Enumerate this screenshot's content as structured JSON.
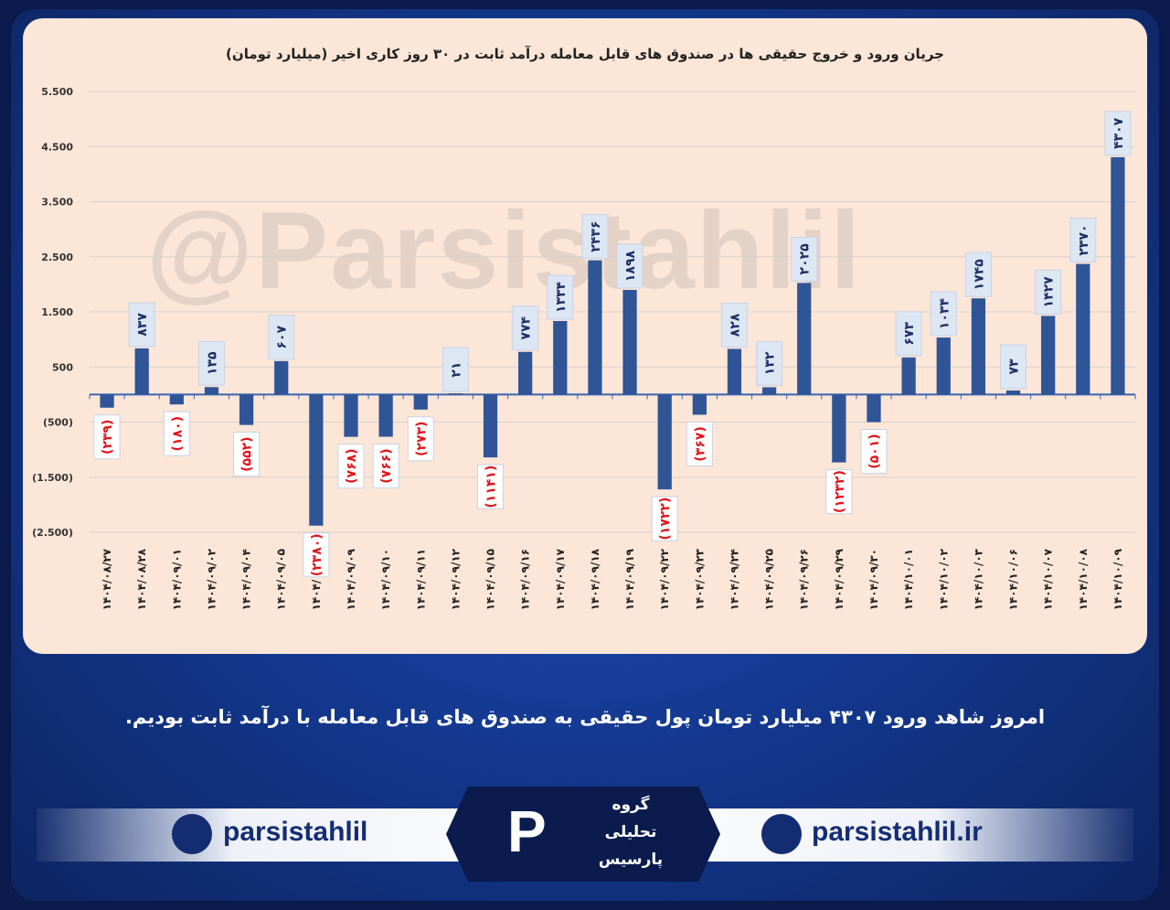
{
  "chart_data": {
    "type": "bar",
    "title": "جریان ورود و خروج حقیقی ها در صندوق های قابل معامله درآمد ثابت در ۳۰ روز کاری اخیر (میلیارد تومان)",
    "categories": [
      "۱۴۰۴/۰۸/۲۷",
      "۱۴۰۴/۰۸/۲۸",
      "۱۴۰۴/۰۹/۰۱",
      "۱۴۰۴/۰۹/۰۲",
      "۱۴۰۴/۰۹/۰۴",
      "۱۴۰۴/۰۹/۰۵",
      "۱۴۰۴/۰۹/۰۸",
      "۱۴۰۴/۰۹/۰۹",
      "۱۴۰۴/۰۹/۱۰",
      "۱۴۰۴/۰۹/۱۱",
      "۱۴۰۴/۰۹/۱۲",
      "۱۴۰۴/۰۹/۱۵",
      "۱۴۰۴/۰۹/۱۶",
      "۱۴۰۴/۰۹/۱۷",
      "۱۴۰۴/۰۹/۱۸",
      "۱۴۰۴/۰۹/۱۹",
      "۱۴۰۴/۰۹/۲۲",
      "۱۴۰۴/۰۹/۲۳",
      "۱۴۰۴/۰۹/۲۴",
      "۱۴۰۴/۰۹/۲۵",
      "۱۴۰۴/۰۹/۲۶",
      "۱۴۰۴/۰۹/۲۹",
      "۱۴۰۴/۰۹/۳۰",
      "۱۴۰۴/۱۰/۰۱",
      "۱۴۰۴/۱۰/۰۲",
      "۱۴۰۴/۱۰/۰۳",
      "۱۴۰۴/۱۰/۰۶",
      "۱۴۰۴/۱۰/۰۷",
      "۱۴۰۴/۱۰/۰۸",
      "۱۴۰۴/۱۰/۰۹"
    ],
    "values": [
      -239,
      837,
      -180,
      135,
      -552,
      607,
      -2380,
      -768,
      -766,
      -273,
      21,
      -1141,
      774,
      1334,
      2436,
      1898,
      -1722,
      -367,
      828,
      132,
      2025,
      -1232,
      -501,
      673,
      1034,
      1745,
      73,
      1427,
      2370,
      4307
    ],
    "value_labels": [
      "(۲۳۹)",
      "۸۳۷",
      "(۱۸۰)",
      "۱۳۵",
      "(۵۵۲)",
      "۶۰۷",
      "(۲۳۸۰)",
      "(۷۶۸)",
      "(۷۶۶)",
      "(۲۷۳)",
      "۲۱",
      "(۱۱۴۱)",
      "۷۷۴",
      "۱۳۳۴",
      "۲۴۳۶",
      "۱۸۹۸",
      "(۱۷۲۲)",
      "(۳۶۷)",
      "۸۲۸",
      "۱۳۲",
      "۲۰۲۵",
      "(۱۲۳۲)",
      "(۵۰۱)",
      "۶۷۳",
      "۱۰۳۴",
      "۱۷۴۵",
      "۷۳",
      "۱۴۲۷",
      "۲۳۷۰",
      "۴۳۰۷"
    ],
    "color": "#2f5597",
    "negative_label_color": "#e0151b",
    "ylim": [
      -2500,
      5500
    ],
    "yticks": [
      {
        "value": -2500,
        "label": "(2.500)"
      },
      {
        "value": -1500,
        "label": "(1.500)"
      },
      {
        "value": -500,
        "label": "(500)"
      },
      500,
      {
        "value": 1500,
        "label": "1.500"
      },
      {
        "value": 2500,
        "label": "2.500"
      },
      {
        "value": 3500,
        "label": "3.500"
      },
      {
        "value": 4500,
        "label": "4.500"
      },
      {
        "value": 5500,
        "label": "5.500"
      }
    ],
    "grid": true
  },
  "watermark": "@Parsistahlil",
  "caption": "امروز شاهد ورود ۴۳۰۷ میلیارد تومان پول حقیقی به صندوق های قابل معامله با درآمد ثابت بودیم.",
  "footer": {
    "telegram": "parsistahlil",
    "website": "parsistahlil.ir",
    "logo_lines": [
      "گروه",
      "تحلیلی",
      "پارسیس"
    ]
  }
}
